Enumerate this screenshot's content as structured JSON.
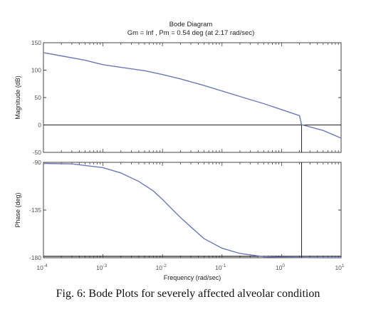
{
  "figure": {
    "caption": "Fig. 6:  Bode Plots for severely affected alveolar condition"
  },
  "chart_data": {
    "type": "line",
    "title": "Bode Diagram",
    "subtitle": "Gm = Inf ,  Pm = 0.54 deg (at 2.17 rad/sec)",
    "xlabel": "Frequency  (rad/sec)",
    "xscale": "log",
    "xlim": [
      0.0001,
      10
    ],
    "x_ticks": [
      {
        "value": 0.0001,
        "base": "10",
        "exp": "-4"
      },
      {
        "value": 0.001,
        "base": "10",
        "exp": "-3"
      },
      {
        "value": 0.01,
        "base": "10",
        "exp": "-2"
      },
      {
        "value": 0.1,
        "base": "10",
        "exp": "-1"
      },
      {
        "value": 1,
        "base": "10",
        "exp": "0"
      },
      {
        "value": 10,
        "base": "10",
        "exp": "1"
      }
    ],
    "crossover_frequency": 2.17,
    "line_color": "#6b79b8",
    "magnitude": {
      "ylabel": "Magnitude (dB)",
      "ylim": [
        -50,
        150
      ],
      "yticks": [
        {
          "value": -50,
          "label": "-50"
        },
        {
          "value": 0,
          "label": "0"
        },
        {
          "value": 50,
          "label": "50"
        },
        {
          "value": 100,
          "label": "100"
        },
        {
          "value": 150,
          "label": "150"
        }
      ],
      "zero_line": 0,
      "series": [
        {
          "x": [
            0.0001,
            0.0002,
            0.0005,
            0.001,
            0.002,
            0.005,
            0.01,
            0.02,
            0.05,
            0.1,
            0.2,
            0.5,
            1,
            2,
            2.17,
            5,
            10
          ],
          "y": [
            132,
            126,
            118,
            110,
            105,
            99,
            92,
            84,
            72,
            62,
            52,
            39,
            28,
            17,
            0.5,
            -10,
            -24
          ]
        }
      ]
    },
    "phase": {
      "ylabel": "Phase (deg)",
      "ylim": [
        -180,
        -90
      ],
      "yticks": [
        {
          "value": -180,
          "label": "-180"
        },
        {
          "value": -135,
          "label": "-135"
        },
        {
          "value": -90,
          "label": "-90"
        }
      ],
      "series": [
        {
          "x": [
            0.0001,
            0.0003,
            0.001,
            0.002,
            0.004,
            0.007,
            0.01,
            0.015,
            0.02,
            0.03,
            0.05,
            0.1,
            0.2,
            0.5,
            1,
            2,
            5,
            10
          ],
          "y": [
            -91,
            -91.5,
            -95,
            -100,
            -108,
            -117,
            -125,
            -135,
            -142,
            -151,
            -162,
            -171,
            -176,
            -179,
            -179.5,
            -179.8,
            -180,
            -180
          ]
        }
      ]
    }
  }
}
